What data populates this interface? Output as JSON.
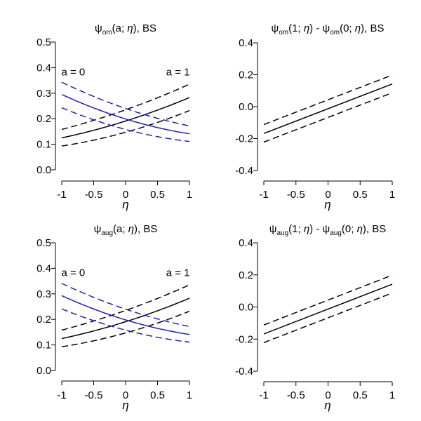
{
  "chart_data": [
    {
      "type": "line",
      "title": {
        "psi": "ψ",
        "sub": "om",
        "rest": "(a; ",
        "eta": "η",
        "end": "), BS"
      },
      "xlabel": "η",
      "ylabel": "",
      "xlim": [
        -1,
        1
      ],
      "ylim": [
        0,
        0.5
      ],
      "xticks": [
        -1,
        -0.5,
        0,
        0.5,
        1
      ],
      "xtick_labels": [
        "-1",
        "-0.5",
        "0",
        "0.5",
        "1"
      ],
      "yticks": [
        0,
        0.1,
        0.2,
        0.3,
        0.4,
        0.5
      ],
      "ytick_labels": [
        "0.0",
        "0.1",
        "0.2",
        "0.3",
        "0.4",
        "0.5"
      ],
      "annotations": [
        {
          "text": "a = 0",
          "x": -0.82,
          "y": 0.37,
          "anchor": "middle"
        },
        {
          "text": "a = 1",
          "x": 0.82,
          "y": 0.37,
          "anchor": "middle"
        }
      ],
      "series": [
        {
          "name": "a = 1 estimate",
          "color": "#000000",
          "dash": "solid",
          "x": [
            -1,
            0,
            1
          ],
          "y": [
            0.125,
            0.191,
            0.283
          ]
        },
        {
          "name": "a = 1 lower",
          "color": "#000000",
          "dash": "dashed",
          "x": [
            -1,
            0,
            1
          ],
          "y": [
            0.093,
            0.147,
            0.232
          ]
        },
        {
          "name": "a = 1 upper",
          "color": "#000000",
          "dash": "dashed",
          "x": [
            -1,
            0,
            1
          ],
          "y": [
            0.158,
            0.235,
            0.335
          ]
        },
        {
          "name": "a = 0 estimate",
          "color": "#1f1fbf",
          "dash": "solid",
          "x": [
            -1,
            0,
            1
          ],
          "y": [
            0.295,
            0.199,
            0.141
          ]
        },
        {
          "name": "a = 0 lower",
          "color": "#1f1fbf",
          "dash": "dashed",
          "x": [
            -1,
            0,
            1
          ],
          "y": [
            0.243,
            0.158,
            0.111
          ]
        },
        {
          "name": "a = 0 upper",
          "color": "#1f1fbf",
          "dash": "dashed",
          "x": [
            -1,
            0,
            1
          ],
          "y": [
            0.343,
            0.24,
            0.172
          ]
        }
      ]
    },
    {
      "type": "line",
      "title": {
        "psi": "ψ",
        "sub": "om",
        "rest": "(1; ",
        "eta": "η",
        "mid": ") - ",
        "psi2": "ψ",
        "sub2": "om",
        "rest2": "(0; ",
        "eta2": "η",
        "end": "), BS"
      },
      "xlabel": "η",
      "ylabel": "",
      "xlim": [
        -1,
        1
      ],
      "ylim": [
        -0.4,
        0.4
      ],
      "xticks": [
        -1,
        -0.5,
        0,
        0.5,
        1
      ],
      "xtick_labels": [
        "-1",
        "-0.5",
        "0",
        "0.5",
        "1"
      ],
      "yticks": [
        -0.4,
        -0.2,
        0,
        0.2,
        0.4
      ],
      "ytick_labels": [
        "-0.4",
        "-0.2",
        "0.0",
        "0.2",
        "0.4"
      ],
      "annotations": [],
      "series": [
        {
          "name": "difference estimate",
          "color": "#000000",
          "dash": "solid",
          "x": [
            -1,
            1
          ],
          "y": [
            -0.168,
            0.142
          ]
        },
        {
          "name": "difference lower",
          "color": "#000000",
          "dash": "dashed",
          "x": [
            -1,
            1
          ],
          "y": [
            -0.222,
            0.087
          ]
        },
        {
          "name": "difference upper",
          "color": "#000000",
          "dash": "dashed",
          "x": [
            -1,
            1
          ],
          "y": [
            -0.112,
            0.198
          ]
        }
      ]
    },
    {
      "type": "line",
      "title": {
        "psi": "ψ",
        "sub": "aug",
        "rest": "(a; ",
        "eta": "η",
        "end": "), BS"
      },
      "xlabel": "η",
      "ylabel": "",
      "xlim": [
        -1,
        1
      ],
      "ylim": [
        0,
        0.5
      ],
      "xticks": [
        -1,
        -0.5,
        0,
        0.5,
        1
      ],
      "xtick_labels": [
        "-1",
        "-0.5",
        "0",
        "0.5",
        "1"
      ],
      "yticks": [
        0,
        0.1,
        0.2,
        0.3,
        0.4,
        0.5
      ],
      "ytick_labels": [
        "0.0",
        "0.1",
        "0.2",
        "0.3",
        "0.4",
        "0.5"
      ],
      "annotations": [
        {
          "text": "a = 0",
          "x": -0.82,
          "y": 0.37,
          "anchor": "middle"
        },
        {
          "text": "a = 1",
          "x": 0.82,
          "y": 0.37,
          "anchor": "middle"
        }
      ],
      "series": [
        {
          "name": "a = 1 estimate",
          "color": "#000000",
          "dash": "solid",
          "x": [
            -1,
            0,
            1
          ],
          "y": [
            0.125,
            0.191,
            0.283
          ]
        },
        {
          "name": "a = 1 lower",
          "color": "#000000",
          "dash": "dashed",
          "x": [
            -1,
            0,
            1
          ],
          "y": [
            0.093,
            0.147,
            0.232
          ]
        },
        {
          "name": "a = 1 upper",
          "color": "#000000",
          "dash": "dashed",
          "x": [
            -1,
            0,
            1
          ],
          "y": [
            0.158,
            0.235,
            0.335
          ]
        },
        {
          "name": "a = 0 estimate",
          "color": "#1f1fbf",
          "dash": "solid",
          "x": [
            -1,
            0,
            1
          ],
          "y": [
            0.293,
            0.198,
            0.141
          ]
        },
        {
          "name": "a = 0 lower",
          "color": "#1f1fbf",
          "dash": "dashed",
          "x": [
            -1,
            0,
            1
          ],
          "y": [
            0.241,
            0.158,
            0.111
          ]
        },
        {
          "name": "a = 0 upper",
          "color": "#1f1fbf",
          "dash": "dashed",
          "x": [
            -1,
            0,
            1
          ],
          "y": [
            0.341,
            0.24,
            0.172
          ]
        }
      ]
    },
    {
      "type": "line",
      "title": {
        "psi": "ψ",
        "sub": "aug",
        "rest": "(1; ",
        "eta": "η",
        "mid": ") - ",
        "psi2": "ψ",
        "sub2": "aug",
        "rest2": "(0; ",
        "eta2": "η",
        "end": "), BS"
      },
      "xlabel": "η",
      "ylabel": "",
      "xlim": [
        -1,
        1
      ],
      "ylim": [
        -0.4,
        0.4
      ],
      "xticks": [
        -1,
        -0.5,
        0,
        0.5,
        1
      ],
      "xtick_labels": [
        "-1",
        "-0.5",
        "0",
        "0.5",
        "1"
      ],
      "yticks": [
        -0.4,
        -0.2,
        0,
        0.2,
        0.4
      ],
      "ytick_labels": [
        "-0.4",
        "-0.2",
        "0.0",
        "0.2",
        "0.4"
      ],
      "annotations": [],
      "series": [
        {
          "name": "difference estimate",
          "color": "#000000",
          "dash": "solid",
          "x": [
            -1,
            1
          ],
          "y": [
            -0.168,
            0.142
          ]
        },
        {
          "name": "difference lower",
          "color": "#000000",
          "dash": "dashed",
          "x": [
            -1,
            1
          ],
          "y": [
            -0.222,
            0.087
          ]
        },
        {
          "name": "difference upper",
          "color": "#000000",
          "dash": "dashed",
          "x": [
            -1,
            1
          ],
          "y": [
            -0.112,
            0.198
          ]
        }
      ]
    }
  ]
}
